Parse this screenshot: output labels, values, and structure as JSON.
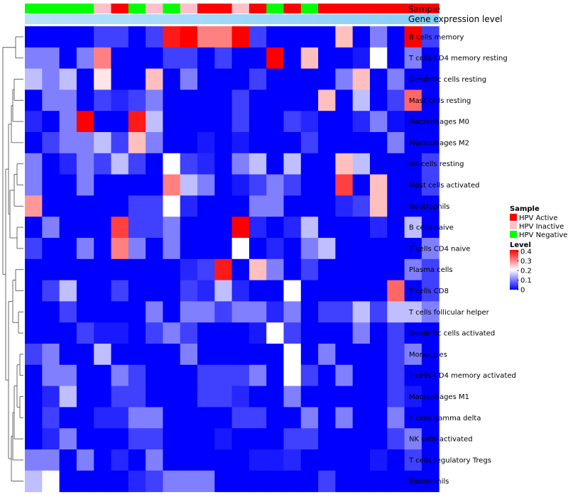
{
  "chart_data": {
    "type": "heatmap",
    "annotation_rows": [
      "Sample",
      "Gene expression level"
    ],
    "row_labels": [
      "B cells memory",
      "T cells CD4 memory resting",
      "Dendritic cells resting",
      "Mast cells resting",
      "Macrophages M0",
      "Macrophages M2",
      "NK cells resting",
      "Mast cells activated",
      "Neutrophils",
      "B cells naive",
      "T cells CD4 naive",
      "Plasma cells",
      "T cells CD8",
      "T cells follicular helper",
      "Dendritic cells activated",
      "Monocytes",
      "T cells CD4 memory activated",
      "Macrophages M1",
      "T cells gamma delta",
      "NK cells activated",
      "T cells regulatory  Tregs",
      "Eosinophils"
    ],
    "sample_groups": [
      "Negative",
      "Negative",
      "Negative",
      "Negative",
      "Inactive",
      "Active",
      "Negative",
      "Inactive",
      "Negative",
      "Inactive",
      "Active",
      "Active",
      "Inactive",
      "Active",
      "Negative",
      "Active",
      "Negative",
      "Active",
      "Active",
      "Active",
      "Active",
      "Active",
      "Active",
      "Active"
    ],
    "values": [
      [
        0,
        0,
        0,
        0,
        0.05,
        0.05,
        0,
        0.05,
        0.38,
        0.4,
        0.3,
        0.3,
        0.4,
        0.05,
        0,
        0,
        0,
        0,
        0.25,
        0,
        0.1,
        0,
        0.4,
        0.05
      ],
      [
        0.1,
        0.1,
        0,
        0.1,
        0.3,
        0,
        0,
        0,
        0.05,
        0.05,
        0,
        0.05,
        0,
        0,
        0.4,
        0,
        0.25,
        0,
        0,
        0.02,
        0.2,
        0,
        0.1,
        0
      ],
      [
        0.15,
        0.1,
        0.15,
        0,
        0.22,
        0,
        0,
        0.25,
        0,
        0.1,
        0,
        0,
        0,
        0.05,
        0,
        0,
        0,
        0,
        0.1,
        0.25,
        0,
        0.1,
        0,
        0
      ],
      [
        0,
        0.1,
        0.1,
        0,
        0.05,
        0.03,
        0.05,
        0.1,
        0,
        0,
        0,
        0,
        0.05,
        0,
        0,
        0,
        0,
        0.25,
        0,
        0.15,
        0,
        0.05,
        0.32,
        0
      ],
      [
        0.03,
        0,
        0.1,
        0.4,
        0,
        0,
        0.38,
        0.15,
        0,
        0,
        0,
        0,
        0.05,
        0,
        0,
        0.05,
        0.03,
        0,
        0,
        0.03,
        0.1,
        0.01,
        0,
        0
      ],
      [
        0,
        0.05,
        0.1,
        0.1,
        0.15,
        0.05,
        0.25,
        0.1,
        0,
        0,
        0.02,
        0,
        0.02,
        0,
        0,
        0,
        0.05,
        0,
        0,
        0,
        0,
        0.1,
        0,
        0
      ],
      [
        0.1,
        0,
        0.03,
        0.1,
        0.05,
        0.15,
        0.05,
        0,
        0.2,
        0.05,
        0.03,
        0,
        0.1,
        0.15,
        0,
        0.15,
        0,
        0,
        0.25,
        0.15,
        0,
        0,
        0,
        0.05
      ],
      [
        0.1,
        0,
        0,
        0.1,
        0,
        0,
        0,
        0,
        0.3,
        0.15,
        0.1,
        0,
        0.02,
        0.05,
        0.1,
        0.05,
        0,
        0,
        0.35,
        0,
        0.25,
        0,
        0,
        0.05
      ],
      [
        0.28,
        0,
        0,
        0,
        0,
        0,
        0.05,
        0.05,
        0.2,
        0.03,
        0,
        0,
        0,
        0.1,
        0.1,
        0,
        0,
        0,
        0.03,
        0.05,
        0.25,
        0,
        0,
        0
      ],
      [
        0,
        0.1,
        0,
        0,
        0,
        0.35,
        0.05,
        0.05,
        0.1,
        0,
        0,
        0,
        0.4,
        0.03,
        0,
        0.03,
        0.15,
        0,
        0,
        0,
        0.03,
        0,
        0.15,
        0
      ],
      [
        0.05,
        0,
        0,
        0.1,
        0,
        0.3,
        0.1,
        0,
        0.1,
        0,
        0,
        0,
        0.2,
        0,
        0.03,
        0,
        0.1,
        0.15,
        0,
        0,
        0,
        0,
        0,
        0.1
      ],
      [
        0,
        0,
        0,
        0,
        0,
        0,
        0,
        0,
        0,
        0.03,
        0.05,
        0.38,
        0,
        0.25,
        0.1,
        0,
        0.05,
        0,
        0,
        0,
        0,
        0,
        0.1,
        0.05
      ],
      [
        0,
        0.05,
        0.15,
        0,
        0,
        0.05,
        0,
        0,
        0,
        0.05,
        0.03,
        0.15,
        0.03,
        0,
        0,
        0.2,
        0,
        0,
        0,
        0,
        0,
        0.32,
        0,
        0.05
      ],
      [
        0,
        0,
        0.05,
        0,
        0,
        0,
        0,
        0.1,
        0,
        0.1,
        0.1,
        0.05,
        0.1,
        0.1,
        0.03,
        0.1,
        0,
        0.05,
        0.05,
        0.15,
        0.05,
        0.15,
        0.15,
        0.1
      ],
      [
        0,
        0,
        0,
        0.05,
        0.02,
        0.02,
        0,
        0.05,
        0.1,
        0.05,
        0,
        0,
        0,
        0.02,
        0.2,
        0.05,
        0,
        0,
        0,
        0.1,
        0,
        0.05,
        0,
        0
      ],
      [
        0.05,
        0.1,
        0,
        0,
        0.15,
        0,
        0,
        0,
        0,
        0.1,
        0,
        0,
        0,
        0,
        0,
        0.2,
        0,
        0.1,
        0,
        0,
        0,
        0.05,
        0.1,
        0
      ],
      [
        0,
        0.1,
        0.1,
        0,
        0,
        0.1,
        0.05,
        0,
        0,
        0,
        0.05,
        0.05,
        0.05,
        0.1,
        0,
        0.2,
        0.05,
        0,
        0.1,
        0,
        0,
        0.05,
        0,
        0
      ],
      [
        0,
        0.03,
        0.15,
        0,
        0,
        0.05,
        0.05,
        0,
        0,
        0,
        0.05,
        0.05,
        0.03,
        0,
        0,
        0.1,
        0,
        0,
        0,
        0,
        0,
        0.05,
        0.02,
        0
      ],
      [
        0,
        0.05,
        0,
        0,
        0.03,
        0.03,
        0.1,
        0.1,
        0,
        0,
        0,
        0,
        0.05,
        0.05,
        0,
        0,
        0.1,
        0,
        0.1,
        0,
        0,
        0.1,
        0,
        0
      ],
      [
        0,
        0.03,
        0.1,
        0,
        0,
        0,
        0.05,
        0.05,
        0,
        0,
        0,
        0.02,
        0,
        0,
        0,
        0.05,
        0.05,
        0,
        0,
        0,
        0,
        0.05,
        0.1,
        0
      ],
      [
        0.1,
        0.1,
        0,
        0.1,
        0,
        0.03,
        0,
        0.1,
        0,
        0,
        0,
        0,
        0,
        0.02,
        0.02,
        0.03,
        0,
        0,
        0,
        0,
        0.02,
        0,
        0.05,
        0
      ],
      [
        0.15,
        0.2,
        0,
        0,
        0,
        0,
        0.03,
        0.05,
        0.1,
        0.1,
        0.1,
        0,
        0,
        0,
        0,
        0,
        0,
        0.05,
        0,
        0,
        0,
        0,
        0,
        0
      ]
    ],
    "color_scale": {
      "low": "#0000ff",
      "mid": "#ffffff",
      "high": "#ff0000",
      "min": 0,
      "mid_value": 0.2,
      "max": 0.4
    },
    "group_colors": {
      "Active": "#ff0000",
      "Inactive": "#ffc0cb",
      "Negative": "#00ff00"
    },
    "level_bar_color": "#87cefa",
    "legend": {
      "sample_title": "Sample",
      "sample_items": [
        "HPV Active",
        "HPV Inactive",
        "HPV Negative"
      ],
      "level_title": "Level",
      "level_ticks": [
        "0.4",
        "0.3",
        "0.2",
        "0.1",
        "0"
      ],
      "placement": "right"
    }
  }
}
